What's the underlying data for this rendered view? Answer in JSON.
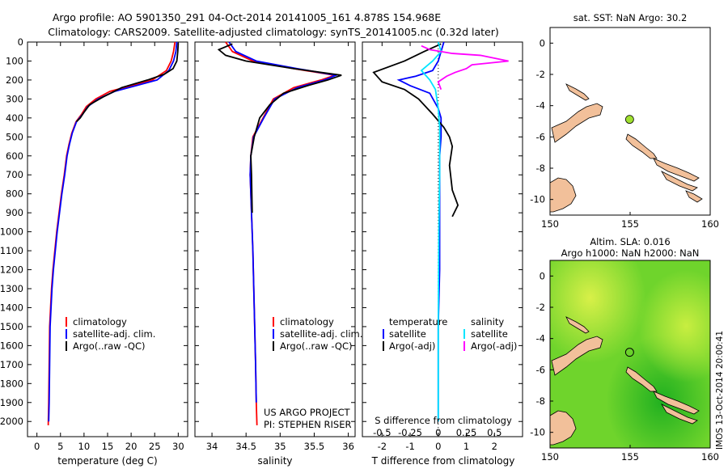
{
  "header": {
    "line1": "Argo profile: AO 5901350_291 04-Oct-2014 20141005_161 4.878S 154.968E",
    "line2": "Climatology: CARS2009. Satellite-adjusted climatology: synTS_20141005.nc (0.32d later)"
  },
  "colors": {
    "climatology": "#ff0000",
    "satellite": "#0000ff",
    "argo": "#000000",
    "salinity_satellite": "#00e5ff",
    "salinity_argo": "#ff00ff",
    "land": "#f2c09a",
    "float_marker": "#a0e030"
  },
  "side_label": "IMOS 13-Oct-2014 20:00:41",
  "chart_data": [
    {
      "id": "temperature",
      "type": "line",
      "xlabel": "temperature (deg C)",
      "ylabel": "",
      "xlim": [
        -2,
        32
      ],
      "ylim": [
        2080,
        0
      ],
      "xticks": [
        0,
        5,
        10,
        15,
        20,
        25,
        30
      ],
      "yticks": [
        0,
        100,
        200,
        300,
        400,
        500,
        600,
        700,
        800,
        900,
        1000,
        1100,
        1200,
        1300,
        1400,
        1500,
        1600,
        1700,
        1800,
        1900,
        2000
      ],
      "legend": [
        "climatology",
        "satellite-adj. clim.",
        "Argo(..raw -QC)"
      ],
      "series": [
        {
          "name": "climatology",
          "color": "#ff0000",
          "x": [
            29.3,
            29.0,
            28.5,
            27.5,
            24.5,
            20.0,
            15.5,
            12.5,
            10.5,
            9.5,
            8.3,
            7.4,
            6.8,
            6.3,
            5.8,
            5.2,
            4.7,
            4.2,
            3.8,
            3.4,
            3.1,
            2.9,
            2.7,
            2.6,
            2.5,
            2.4
          ],
          "y": [
            0,
            50,
            100,
            150,
            200,
            230,
            260,
            300,
            340,
            380,
            420,
            480,
            540,
            600,
            700,
            800,
            900,
            1000,
            1100,
            1200,
            1300,
            1400,
            1500,
            1700,
            1900,
            2020
          ]
        },
        {
          "name": "satellite-adj. clim.",
          "color": "#0000ff",
          "x": [
            29.7,
            29.5,
            29.0,
            28.0,
            25.5,
            21.0,
            16.5,
            13.0,
            10.8,
            9.7,
            8.4,
            7.5,
            6.9,
            6.4,
            5.9,
            5.3,
            4.8,
            4.3,
            3.9,
            3.5,
            3.2,
            3.0,
            2.8,
            2.7,
            2.6,
            2.5
          ],
          "y": [
            0,
            50,
            100,
            150,
            200,
            230,
            260,
            300,
            340,
            380,
            420,
            480,
            540,
            600,
            700,
            800,
            900,
            1000,
            1100,
            1200,
            1300,
            1400,
            1500,
            1700,
            1900,
            2000
          ]
        },
        {
          "name": "Argo(..raw -QC)",
          "color": "#000000",
          "x": [
            30.0,
            29.9,
            29.7,
            28.9,
            27.0,
            23.5,
            18.0,
            14.0,
            11.2,
            10.0,
            9.2,
            8.4
          ],
          "y": [
            5,
            50,
            100,
            140,
            170,
            200,
            240,
            290,
            330,
            370,
            400,
            420
          ]
        }
      ]
    },
    {
      "id": "salinity",
      "type": "line",
      "xlabel": "salinity",
      "ylabel": "",
      "xlim": [
        33.75,
        36.1
      ],
      "ylim": [
        2080,
        0
      ],
      "xticks": [
        34,
        34.5,
        35,
        35.5,
        36
      ],
      "legend": [
        "climatology",
        "satellite-adj. clim.",
        "Argo(..raw -QC)"
      ],
      "annotations": [
        "US ARGO PROJECT",
        "PI: STEPHEN RISER"
      ],
      "series": [
        {
          "name": "climatology",
          "color": "#ff0000",
          "x": [
            34.2,
            34.3,
            34.6,
            35.2,
            35.8,
            35.6,
            35.2,
            34.9,
            34.75,
            34.6,
            34.57,
            34.56,
            34.57,
            34.58,
            34.6,
            34.62,
            34.64,
            34.65,
            34.66
          ],
          "y": [
            0,
            50,
            100,
            140,
            175,
            200,
            240,
            300,
            400,
            500,
            600,
            700,
            800,
            900,
            1100,
            1400,
            1700,
            1900,
            2020
          ]
        },
        {
          "name": "satellite-adj. clim.",
          "color": "#0000ff",
          "x": [
            34.25,
            34.35,
            34.65,
            35.25,
            35.82,
            35.65,
            35.25,
            34.92,
            34.76,
            34.61,
            34.57,
            34.56,
            34.57,
            34.58,
            34.6,
            34.62,
            34.64,
            34.65
          ],
          "y": [
            0,
            50,
            100,
            140,
            175,
            200,
            240,
            300,
            400,
            500,
            600,
            700,
            800,
            900,
            1100,
            1400,
            1700,
            1900
          ]
        },
        {
          "name": "Argo(..raw -QC)",
          "color": "#000000",
          "x": [
            34.3,
            34.1,
            34.2,
            34.5,
            35.2,
            35.9,
            35.7,
            35.4,
            35.05,
            34.85,
            34.7,
            34.62,
            34.57,
            34.58,
            34.59
          ],
          "y": [
            10,
            40,
            70,
            100,
            140,
            175,
            200,
            230,
            270,
            330,
            400,
            500,
            600,
            700,
            900
          ]
        }
      ]
    },
    {
      "id": "difference",
      "type": "line",
      "xlabel": "T difference from climatology",
      "xlabel_top": "S difference from climatology",
      "xlim": [
        -2.7,
        3.0
      ],
      "ylim": [
        2080,
        0
      ],
      "xticks": [
        -2,
        -1,
        0,
        1,
        2
      ],
      "xticks_s": [
        -0.5,
        -0.25,
        0,
        0.25,
        0.5
      ],
      "xticklabels_s": [
        "-0.5",
        "-0.25",
        "0",
        "0.25",
        "0.5"
      ],
      "legend_headers": [
        "temperature",
        "salinity"
      ],
      "legend": [
        "satellite",
        "Argo(-adj)",
        "satellite",
        "Argo(-adj)"
      ],
      "series": [
        {
          "name": "satellite",
          "color": "#0000ff",
          "x": [
            0.2,
            0.1,
            0.0,
            -0.2,
            -0.8,
            -1.4,
            -1.0,
            -0.3,
            0.0,
            0.1,
            0.1,
            0.05,
            0.05,
            0.05,
            0.05,
            0.0,
            0.0,
            0.0
          ],
          "y": [
            0,
            50,
            100,
            150,
            180,
            200,
            230,
            270,
            350,
            400,
            500,
            600,
            800,
            1000,
            1200,
            1500,
            1800,
            2000
          ]
        },
        {
          "name": "Argo(-adj)",
          "color": "#000000",
          "x": [
            0.1,
            -0.5,
            -1.2,
            -2.3,
            -2.0,
            -1.2,
            -0.7,
            -0.2,
            0.2,
            0.4,
            0.5,
            0.4,
            0.5,
            0.7,
            0.5
          ],
          "y": [
            10,
            50,
            100,
            160,
            210,
            250,
            300,
            380,
            450,
            500,
            550,
            650,
            780,
            860,
            920
          ]
        },
        {
          "name": "satellite",
          "color": "#00e5ff",
          "x": [
            0.0,
            0.1,
            -0.2,
            -0.6,
            -0.3,
            -0.1,
            0.0,
            0.05,
            0.05,
            0.02,
            0.0,
            0.0
          ],
          "y": [
            0,
            50,
            100,
            150,
            200,
            250,
            350,
            450,
            700,
            1000,
            1500,
            2000
          ]
        },
        {
          "name": "Argo(-adj)",
          "color": "#ff00ff",
          "x": [
            -0.6,
            -0.3,
            0.5,
            1.5,
            2.5,
            1.2,
            1.0,
            0.6,
            0.3,
            0.0,
            0.1
          ],
          "y": [
            20,
            40,
            60,
            70,
            100,
            120,
            140,
            160,
            180,
            210,
            250
          ]
        }
      ]
    },
    {
      "id": "sst_map",
      "type": "map",
      "title": "sat. SST: NaN Argo: 30.2",
      "xlim": [
        150,
        160
      ],
      "ylim": [
        -11,
        1
      ],
      "xticks": [
        150,
        155,
        160
      ],
      "yticks": [
        0,
        -2,
        -4,
        -6,
        -8,
        -10
      ],
      "argo_position": [
        154.968,
        -4.878
      ]
    },
    {
      "id": "sla_map",
      "type": "map",
      "title_line1": "Altim. SLA: 0.016",
      "title_line2": "Argo h1000: NaN h2000: NaN",
      "xlim": [
        150,
        160
      ],
      "ylim": [
        -11,
        1
      ],
      "xticks": [
        150,
        155,
        160
      ],
      "yticks": [
        0,
        -2,
        -4,
        -6,
        -8,
        -10
      ],
      "argo_position": [
        154.968,
        -4.878
      ]
    }
  ]
}
